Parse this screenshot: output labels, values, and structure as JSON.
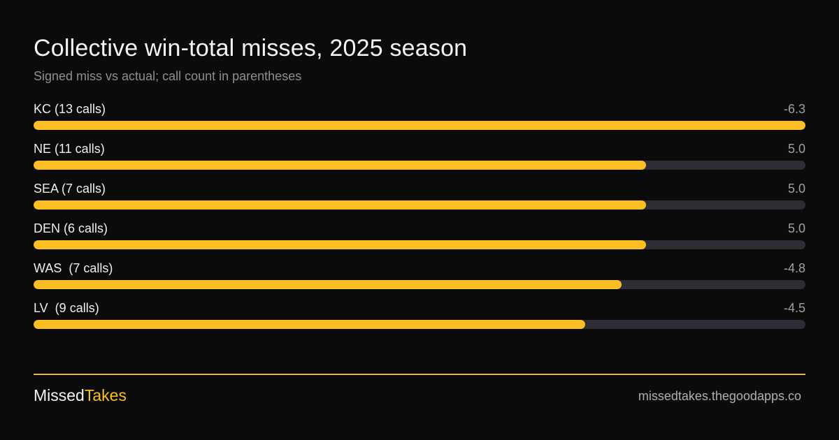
{
  "colors": {
    "background": "#0b0b0b",
    "bar_fill": "#fbbf24",
    "bar_track": "#2e2d33",
    "accent": "#fbbf24"
  },
  "chart_data": {
    "type": "bar",
    "orientation": "horizontal",
    "title": "Collective win-total misses, 2025 season",
    "subtitle": "Signed miss vs actual; call count in parentheses",
    "categories": [
      "KC (13 calls)",
      "NE (11 calls)",
      "SEA (7 calls)",
      "DEN (6 calls)",
      "WAS  (7 calls)",
      "LV  (9 calls)"
    ],
    "values": [
      -6.3,
      5.0,
      5.0,
      5.0,
      -4.8,
      -4.5
    ],
    "value_labels": [
      "-6.3",
      "5.0",
      "5.0",
      "5.0",
      "-4.8",
      "-4.5"
    ],
    "bar_length_basis": "absolute value",
    "xlim": [
      0,
      6.3
    ],
    "grid": false,
    "legend": "none"
  },
  "footer": {
    "brand_part1": "Missed",
    "brand_part2": "Takes",
    "site": "missedtakes.thegoodapps.co"
  }
}
